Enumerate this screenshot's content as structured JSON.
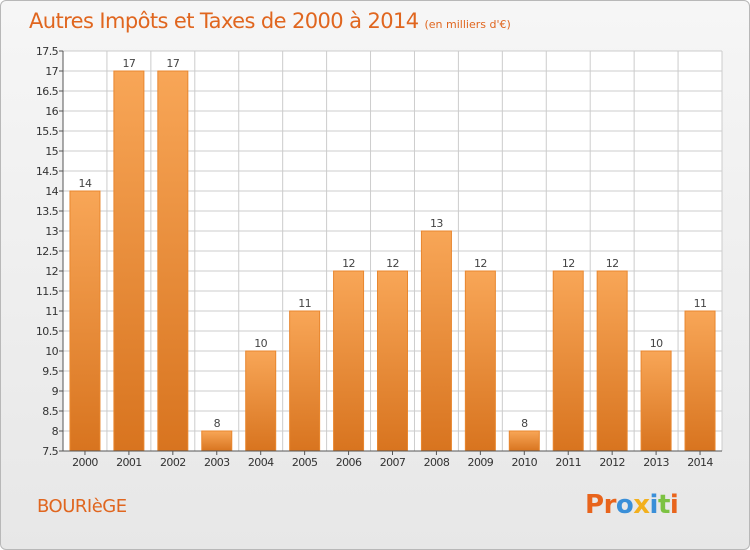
{
  "title": "Autres Impôts et Taxes de 2000 à 2014",
  "subtitle": "(en milliers d'€)",
  "commune": "BOURIèGE",
  "logo": {
    "text": "Proxiti",
    "colors": [
      "#e8641c",
      "#e8641c",
      "#3a8fd8",
      "#f2b01e",
      "#3a8fd8",
      "#7cc242",
      "#e8641c"
    ]
  },
  "colors": {
    "title": "#e0661f",
    "bar_light": "#f8a657",
    "bar_dark": "#d8741f",
    "grid": "#cccccc"
  },
  "chart_data": {
    "type": "bar",
    "title": "Autres Impôts et Taxes de 2000 à 2014",
    "subtitle": "(en milliers d'€)",
    "xlabel": "",
    "ylabel": "",
    "categories": [
      "2000",
      "2001",
      "2002",
      "2003",
      "2004",
      "2005",
      "2006",
      "2007",
      "2008",
      "2009",
      "2010",
      "2011",
      "2012",
      "2013",
      "2014"
    ],
    "values": [
      14,
      17,
      17,
      8,
      10,
      11,
      12,
      12,
      13,
      12,
      8,
      12,
      12,
      10,
      11
    ],
    "data_labels": [
      "14",
      "17",
      "17",
      "8",
      "10",
      "11",
      "12",
      "12",
      "13",
      "12",
      "8",
      "12",
      "12",
      "10",
      "11"
    ],
    "ylim": [
      7.5,
      17.5
    ],
    "yticks": [
      7.5,
      8,
      8.5,
      9,
      9.5,
      10,
      10.5,
      11,
      11.5,
      12,
      12.5,
      13,
      13.5,
      14,
      14.5,
      15,
      15.5,
      16,
      16.5,
      17,
      17.5
    ],
    "ytick_labels": [
      "7.5",
      "8",
      "8.5",
      "9",
      "9.5",
      "10",
      "10.5",
      "11",
      "11.5",
      "12",
      "12.5",
      "13",
      "13.5",
      "14",
      "14.5",
      "15",
      "15.5",
      "16",
      "16.5",
      "17",
      "17.5"
    ],
    "grid": true,
    "legend": "none"
  }
}
